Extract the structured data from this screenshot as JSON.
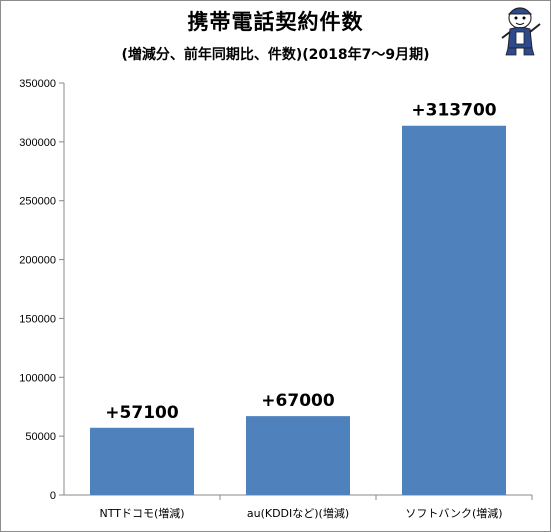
{
  "chart_data": {
    "type": "bar",
    "title": "携帯電話契約件数",
    "subtitle": "(増減分、前年同期比、件数)(2018年7～9月期)",
    "xlabel": "",
    "ylabel": "",
    "categories": [
      "NTTドコモ(増減)",
      "au(KDDIなど)(増減)",
      "ソフトバンク(増減)"
    ],
    "values": [
      57100,
      67000,
      313700
    ],
    "data_labels": [
      "+57100",
      "+67000",
      "+313700"
    ],
    "ylim": [
      0,
      350000
    ],
    "yticks": [
      0,
      50000,
      100000,
      150000,
      200000,
      250000,
      300000,
      350000
    ],
    "ytick_labels": [
      "0",
      "50000",
      "100000",
      "150000",
      "200000",
      "250000",
      "300000",
      "350000"
    ],
    "grid": false,
    "legend": "none",
    "bar_color": "#4f81bd"
  },
  "mascot": {
    "icon": "mascot-illustration-icon"
  }
}
